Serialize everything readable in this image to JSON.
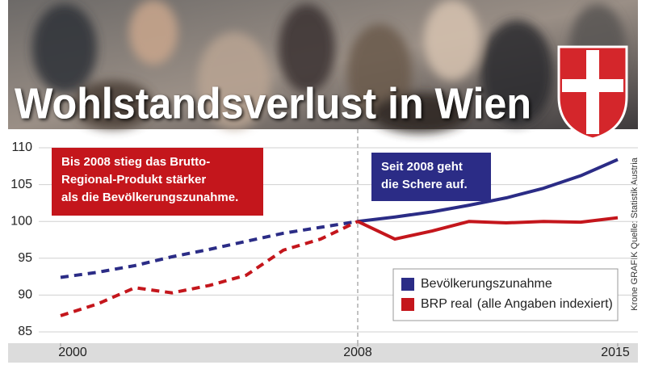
{
  "chart_data": {
    "type": "line",
    "title": "Wohlstandsverlust in Wien",
    "x": [
      2000,
      2001,
      2002,
      2003,
      2004,
      2005,
      2006,
      2007,
      2008,
      2009,
      2010,
      2011,
      2012,
      2013,
      2014,
      2015
    ],
    "series": [
      {
        "name": "Bevölkerungszunahme",
        "color": "#2b2c86",
        "values": [
          92.4,
          93.1,
          94.0,
          95.2,
          96.2,
          97.3,
          98.4,
          99.2,
          100,
          100.6,
          101.3,
          102.2,
          103.2,
          104.5,
          106.2,
          108.4
        ]
      },
      {
        "name": "BRP real",
        "color": "#c4161c",
        "values": [
          87.2,
          88.8,
          91.0,
          90.3,
          91.3,
          92.7,
          96.1,
          97.6,
          100,
          97.6,
          98.7,
          100.0,
          99.8,
          100.0,
          99.9,
          100.5
        ]
      }
    ],
    "legend_note": "(alle Angaben indexiert)",
    "xlim": [
      2000,
      2015
    ],
    "xticks": [
      2000,
      2008,
      2015
    ],
    "ylim": [
      85,
      110
    ],
    "yticks": [
      85,
      90,
      95,
      100,
      105,
      110
    ],
    "grid": true,
    "vline": 2008,
    "annotations": [
      {
        "lines": [
          "Bis 2008 stieg das Brutto-",
          "Regional-Produkt stärker",
          "als die Bevölkerungszunahme."
        ],
        "color": "#c4161c"
      },
      {
        "lines": [
          "Seit 2008 geht",
          "die Schere auf."
        ],
        "color": "#2b2c86"
      }
    ],
    "source": "Krone GRAFIK Quelle: Statistik Austria"
  }
}
